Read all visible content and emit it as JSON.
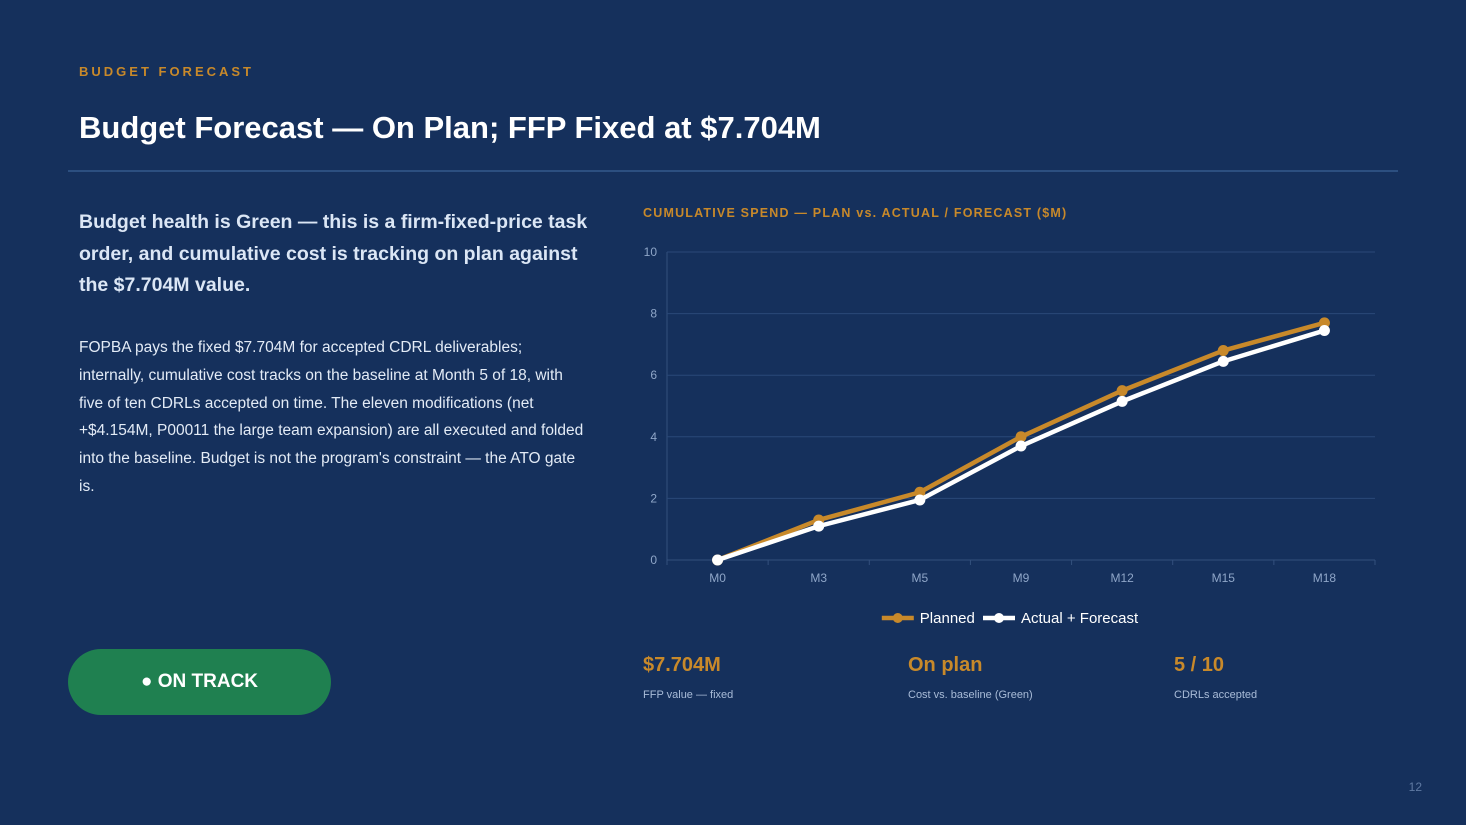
{
  "slide": {
    "eyebrow": "BUDGET FORECAST",
    "title": "Budget Forecast — On Plan; FFP Fixed at $7.704M",
    "lead": "Budget health is Green — this is a firm-fixed-price task order, and cumulative cost is tracking on plan against the $7.704M value.",
    "body": "FOPBA pays the fixed $7.704M for accepted CDRL deliverables; internally, cumulative cost tracks on the baseline at Month 5 of 18, with five of ten CDRLs accepted on time. The eleven modifications (net +$4.154M, P00011 the large team expansion) are all executed and folded into the baseline. Budget is not the program's constraint — the ATO gate is.",
    "status": "● ON TRACK",
    "page_number": "12"
  },
  "kpis": [
    {
      "value": "$7.704M",
      "label": "FFP value — fixed"
    },
    {
      "value": "On plan",
      "label": "Cost vs. baseline (Green)"
    },
    {
      "value": "5 / 10",
      "label": "CDRLs accepted"
    }
  ],
  "colors": {
    "background": "#15305c",
    "accent": "#c8892a",
    "planned": "#c8892a",
    "actual": "#ffffff",
    "status_green": "#1f8050"
  },
  "chart_data": {
    "type": "line",
    "title": "CUMULATIVE SPEND — PLAN vs. ACTUAL / FORECAST ($M)",
    "categories": [
      "M0",
      "M3",
      "M5",
      "M9",
      "M12",
      "M15",
      "M18"
    ],
    "series": [
      {
        "name": "Planned",
        "values": [
          0,
          1.3,
          2.2,
          4.0,
          5.5,
          6.8,
          7.7
        ]
      },
      {
        "name": "Actual + Forecast",
        "values": [
          0,
          1.1,
          1.95,
          3.7,
          5.15,
          6.45,
          7.45
        ]
      }
    ],
    "ylim": [
      0,
      10
    ],
    "yticks": [
      0,
      2,
      4,
      6,
      8,
      10
    ],
    "grid": true,
    "legend": "bottom"
  }
}
